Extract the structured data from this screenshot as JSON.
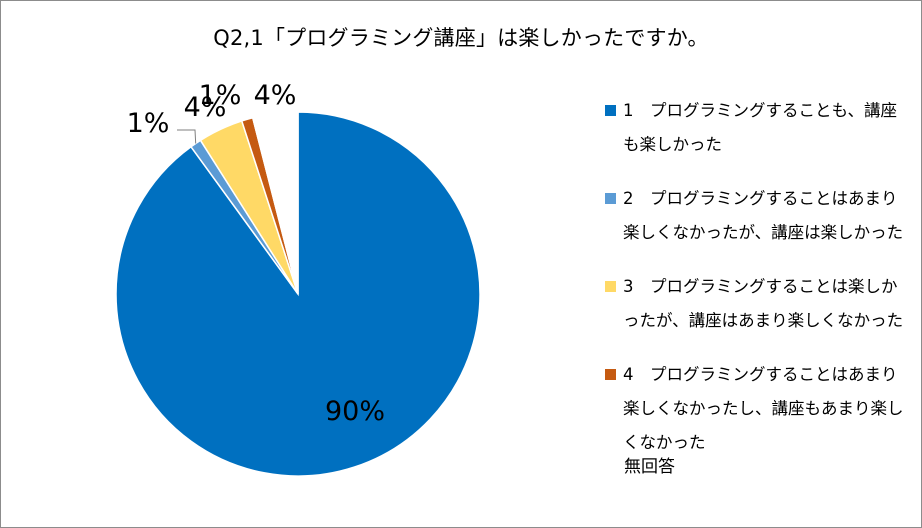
{
  "chart_data": {
    "type": "pie",
    "title": "Q2,1「プログラミング講座」は楽しかったですか。",
    "categories": [
      "1　プログラミングすることも、講座も楽しかった",
      "2　プログラミングすることはあまり楽しくなかったが、講座は楽しかった",
      "3　プログラミングすることは楽しかったが、講座はあまり楽しくなかった",
      "4　プログラミングすることはあまり楽しくなかったし、講座もあまり楽しくなかった",
      "無回答"
    ],
    "values": [
      90,
      1,
      4,
      1,
      4
    ],
    "value_labels": [
      "90%",
      "1%",
      "4%",
      "1%",
      "4%"
    ],
    "colors": [
      "#0070C0",
      "#5B9BD5",
      "#FFD966",
      "#C55A11",
      "#FFFFFF"
    ],
    "legend_position": "right"
  }
}
